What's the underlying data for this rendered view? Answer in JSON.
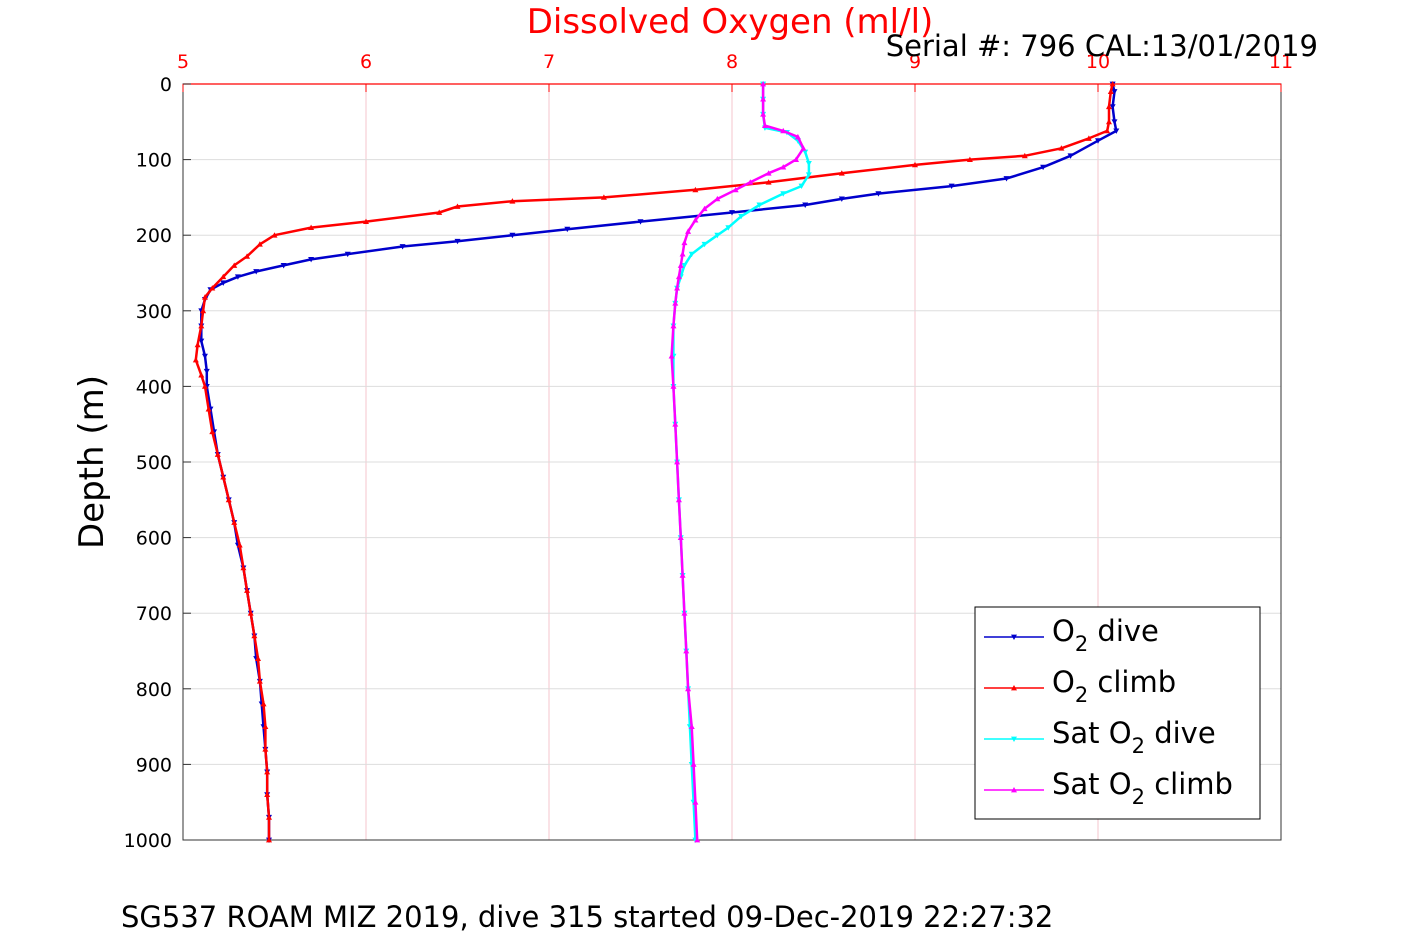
{
  "chart_data": {
    "type": "line",
    "title": "Dissolved Oxygen (ml/l)",
    "annotation": "Serial #: 796  CAL:13/01/2019",
    "footer": "SG537 ROAM MIZ 2019, dive 315 started 09-Dec-2019 22:27:32",
    "xlabel": "Dissolved Oxygen (ml/l)",
    "ylabel": "Depth (m)",
    "xlim": [
      5,
      11
    ],
    "ylim": [
      0,
      1000
    ],
    "y_reversed": true,
    "x_axis_position": "top",
    "xticks": [
      "5",
      "6",
      "7",
      "8",
      "9",
      "10",
      "11"
    ],
    "yticks": [
      "0",
      "100",
      "200",
      "300",
      "400",
      "500",
      "600",
      "700",
      "800",
      "900",
      "1000"
    ],
    "grid": true,
    "legend_position": "bottom-right",
    "colors": {
      "title": "#ff0000",
      "x_axis": "#ff0000",
      "grid": "#f4c6cc"
    },
    "series": [
      {
        "name": "O2 dive",
        "name_parts": [
          "O",
          "2",
          " dive"
        ],
        "color": "#0000cc",
        "marker": "triangle-down",
        "points": [
          [
            10.08,
            0
          ],
          [
            10.09,
            10
          ],
          [
            10.08,
            30
          ],
          [
            10.09,
            50
          ],
          [
            10.1,
            62
          ],
          [
            10.0,
            75
          ],
          [
            9.85,
            95
          ],
          [
            9.7,
            110
          ],
          [
            9.5,
            125
          ],
          [
            9.2,
            135
          ],
          [
            8.8,
            145
          ],
          [
            8.6,
            152
          ],
          [
            8.4,
            160
          ],
          [
            8.0,
            170
          ],
          [
            7.5,
            182
          ],
          [
            7.1,
            192
          ],
          [
            6.8,
            200
          ],
          [
            6.5,
            208
          ],
          [
            6.2,
            215
          ],
          [
            5.9,
            225
          ],
          [
            5.7,
            232
          ],
          [
            5.55,
            240
          ],
          [
            5.4,
            248
          ],
          [
            5.3,
            255
          ],
          [
            5.22,
            263
          ],
          [
            5.15,
            272
          ],
          [
            5.12,
            285
          ],
          [
            5.1,
            300
          ],
          [
            5.1,
            320
          ],
          [
            5.1,
            340
          ],
          [
            5.12,
            360
          ],
          [
            5.13,
            380
          ],
          [
            5.13,
            400
          ],
          [
            5.15,
            430
          ],
          [
            5.17,
            460
          ],
          [
            5.19,
            490
          ],
          [
            5.22,
            520
          ],
          [
            5.25,
            550
          ],
          [
            5.28,
            580
          ],
          [
            5.3,
            610
          ],
          [
            5.33,
            640
          ],
          [
            5.35,
            670
          ],
          [
            5.37,
            700
          ],
          [
            5.39,
            730
          ],
          [
            5.4,
            760
          ],
          [
            5.42,
            790
          ],
          [
            5.43,
            820
          ],
          [
            5.44,
            850
          ],
          [
            5.45,
            880
          ],
          [
            5.46,
            910
          ],
          [
            5.46,
            940
          ],
          [
            5.47,
            970
          ],
          [
            5.47,
            1000
          ]
        ]
      },
      {
        "name": "O2 climb",
        "name_parts": [
          "O",
          "2",
          " climb"
        ],
        "color": "#ff0000",
        "marker": "triangle-up",
        "points": [
          [
            10.08,
            0
          ],
          [
            10.07,
            10
          ],
          [
            10.06,
            30
          ],
          [
            10.06,
            50
          ],
          [
            10.05,
            62
          ],
          [
            9.95,
            72
          ],
          [
            9.8,
            85
          ],
          [
            9.6,
            95
          ],
          [
            9.3,
            100
          ],
          [
            9.0,
            107
          ],
          [
            8.6,
            118
          ],
          [
            8.2,
            130
          ],
          [
            7.8,
            140
          ],
          [
            7.3,
            150
          ],
          [
            6.8,
            155
          ],
          [
            6.5,
            162
          ],
          [
            6.4,
            170
          ],
          [
            6.0,
            182
          ],
          [
            5.7,
            190
          ],
          [
            5.5,
            200
          ],
          [
            5.42,
            212
          ],
          [
            5.35,
            228
          ],
          [
            5.28,
            240
          ],
          [
            5.22,
            255
          ],
          [
            5.16,
            270
          ],
          [
            5.12,
            282
          ],
          [
            5.11,
            300
          ],
          [
            5.1,
            320
          ],
          [
            5.08,
            345
          ],
          [
            5.07,
            365
          ],
          [
            5.1,
            385
          ],
          [
            5.12,
            400
          ],
          [
            5.14,
            430
          ],
          [
            5.16,
            460
          ],
          [
            5.19,
            490
          ],
          [
            5.22,
            520
          ],
          [
            5.25,
            550
          ],
          [
            5.28,
            580
          ],
          [
            5.31,
            610
          ],
          [
            5.33,
            640
          ],
          [
            5.35,
            670
          ],
          [
            5.37,
            700
          ],
          [
            5.39,
            730
          ],
          [
            5.41,
            760
          ],
          [
            5.42,
            790
          ],
          [
            5.44,
            820
          ],
          [
            5.45,
            850
          ],
          [
            5.45,
            880
          ],
          [
            5.46,
            910
          ],
          [
            5.46,
            940
          ],
          [
            5.47,
            970
          ],
          [
            5.47,
            1000
          ]
        ]
      },
      {
        "name": "Sat O2 dive",
        "name_parts": [
          "Sat O",
          "2",
          " dive"
        ],
        "color": "#00ffff",
        "marker": "triangle-down",
        "points": [
          [
            8.17,
            0
          ],
          [
            8.17,
            20
          ],
          [
            8.17,
            40
          ],
          [
            8.18,
            58
          ],
          [
            8.3,
            64
          ],
          [
            8.36,
            75
          ],
          [
            8.4,
            90
          ],
          [
            8.42,
            105
          ],
          [
            8.42,
            120
          ],
          [
            8.38,
            135
          ],
          [
            8.28,
            145
          ],
          [
            8.15,
            160
          ],
          [
            8.05,
            175
          ],
          [
            7.98,
            190
          ],
          [
            7.92,
            200
          ],
          [
            7.85,
            212
          ],
          [
            7.78,
            225
          ],
          [
            7.74,
            240
          ],
          [
            7.72,
            255
          ],
          [
            7.7,
            270
          ],
          [
            7.69,
            290
          ],
          [
            7.68,
            320
          ],
          [
            7.68,
            360
          ],
          [
            7.68,
            400
          ],
          [
            7.69,
            450
          ],
          [
            7.7,
            500
          ],
          [
            7.71,
            550
          ],
          [
            7.72,
            600
          ],
          [
            7.73,
            650
          ],
          [
            7.74,
            700
          ],
          [
            7.75,
            750
          ],
          [
            7.76,
            800
          ],
          [
            7.77,
            850
          ],
          [
            7.78,
            900
          ],
          [
            7.79,
            950
          ],
          [
            7.8,
            1000
          ]
        ]
      },
      {
        "name": "Sat O2 climb",
        "name_parts": [
          "Sat O",
          "2",
          " climb"
        ],
        "color": "#ff00ff",
        "marker": "triangle-up",
        "points": [
          [
            8.17,
            0
          ],
          [
            8.17,
            20
          ],
          [
            8.17,
            40
          ],
          [
            8.18,
            55
          ],
          [
            8.28,
            62
          ],
          [
            8.36,
            70
          ],
          [
            8.39,
            85
          ],
          [
            8.35,
            100
          ],
          [
            8.28,
            110
          ],
          [
            8.2,
            118
          ],
          [
            8.1,
            130
          ],
          [
            8.02,
            140
          ],
          [
            7.92,
            152
          ],
          [
            7.85,
            165
          ],
          [
            7.8,
            180
          ],
          [
            7.76,
            195
          ],
          [
            7.74,
            210
          ],
          [
            7.73,
            225
          ],
          [
            7.72,
            240
          ],
          [
            7.71,
            255
          ],
          [
            7.7,
            270
          ],
          [
            7.69,
            290
          ],
          [
            7.68,
            320
          ],
          [
            7.67,
            360
          ],
          [
            7.68,
            400
          ],
          [
            7.69,
            450
          ],
          [
            7.7,
            500
          ],
          [
            7.71,
            550
          ],
          [
            7.72,
            600
          ],
          [
            7.73,
            650
          ],
          [
            7.74,
            700
          ],
          [
            7.75,
            750
          ],
          [
            7.76,
            800
          ],
          [
            7.78,
            850
          ],
          [
            7.79,
            900
          ],
          [
            7.8,
            950
          ],
          [
            7.81,
            1000
          ]
        ]
      }
    ]
  }
}
